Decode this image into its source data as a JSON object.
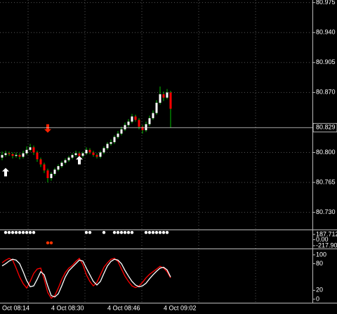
{
  "chart_data": [
    {
      "type": "candlestick",
      "categories": [
        "Oct 08:14",
        null,
        null,
        null,
        null,
        null,
        null,
        null,
        null,
        null,
        null,
        null,
        null,
        null,
        "4 Oct 08:30",
        null,
        null,
        null,
        null,
        null,
        null,
        null,
        null,
        null,
        null,
        null,
        null,
        null,
        null,
        null,
        "4 Oct 08:46",
        null,
        null,
        null,
        null,
        null,
        null,
        null,
        null,
        null,
        null,
        null,
        null,
        null,
        null,
        null,
        "4 Oct 09:02",
        null,
        null
      ],
      "open": [
        80.794,
        80.797,
        80.799,
        80.798,
        80.796,
        80.797,
        80.795,
        80.799,
        80.803,
        80.806,
        80.8,
        80.792,
        80.786,
        80.779,
        80.77,
        80.775,
        80.78,
        80.784,
        80.788,
        80.791,
        80.794,
        80.797,
        80.799,
        80.796,
        80.799,
        80.803,
        80.8,
        80.797,
        80.795,
        80.8,
        80.805,
        80.81,
        80.812,
        80.818,
        80.822,
        80.827,
        80.832,
        80.836,
        80.842,
        80.838,
        80.83,
        80.826,
        80.833,
        80.84,
        80.846,
        80.858,
        80.868,
        80.864,
        80.87
      ],
      "high": [
        80.801,
        80.802,
        80.801,
        80.8,
        80.8,
        80.799,
        80.802,
        80.807,
        80.81,
        80.808,
        80.802,
        80.794,
        80.788,
        80.781,
        80.777,
        80.782,
        80.786,
        80.79,
        80.793,
        80.796,
        80.799,
        80.802,
        80.801,
        80.801,
        80.806,
        80.805,
        80.802,
        80.799,
        80.802,
        80.807,
        80.812,
        80.815,
        80.82,
        80.825,
        80.83,
        80.835,
        80.839,
        80.845,
        80.844,
        80.84,
        80.832,
        80.836,
        80.843,
        80.849,
        80.861,
        80.877,
        80.871,
        80.874,
        80.872
      ],
      "low": [
        80.791,
        80.795,
        80.796,
        80.793,
        80.794,
        80.792,
        80.793,
        80.797,
        80.801,
        80.797,
        80.789,
        80.783,
        80.776,
        80.765,
        80.767,
        80.773,
        80.778,
        80.782,
        80.786,
        80.789,
        80.792,
        80.795,
        80.793,
        80.794,
        80.797,
        80.798,
        80.795,
        80.793,
        80.793,
        80.798,
        80.803,
        80.808,
        80.81,
        80.816,
        80.82,
        80.825,
        80.83,
        80.834,
        80.836,
        80.827,
        80.822,
        80.824,
        80.831,
        80.838,
        80.844,
        80.856,
        80.86,
        80.862,
        80.829
      ],
      "close": [
        80.797,
        80.799,
        80.798,
        80.796,
        80.797,
        80.795,
        80.799,
        80.803,
        80.806,
        80.8,
        80.792,
        80.786,
        80.779,
        80.77,
        80.775,
        80.78,
        80.784,
        80.788,
        80.791,
        80.794,
        80.797,
        80.799,
        80.796,
        80.799,
        80.803,
        80.8,
        80.797,
        80.795,
        80.8,
        80.805,
        80.81,
        80.812,
        80.818,
        80.822,
        80.827,
        80.832,
        80.836,
        80.842,
        80.838,
        80.83,
        80.826,
        80.833,
        80.84,
        80.846,
        80.858,
        80.868,
        80.864,
        80.87,
        80.851
      ],
      "up_color": "#ffffff",
      "down_color": "#ff0000",
      "wick_color": "#00c000",
      "ylim": [
        80.71,
        80.978
      ],
      "yticks": [
        {
          "value": 80.73,
          "label": "80.730"
        },
        80.765,
        {
          "value": 80.8,
          "label": "80.800"
        },
        {
          "value": 80.87,
          "label": "80.870"
        },
        80.905,
        {
          "value": 80.94,
          "label": "80.940"
        },
        80.975
      ],
      "current_price": 80.829,
      "grid": true,
      "up_arrows": {
        "x": [
          1,
          22
        ],
        "values": [
          80.777,
          80.791
        ],
        "color": "#ffffff"
      },
      "down_arrows": {
        "x": [
          13
        ],
        "values": [
          80.828
        ],
        "color": "#ff2200"
      }
    },
    {
      "type": "dots",
      "ylim": [
        -320,
        340
      ],
      "yticks": [
        187.712,
        {
          "value": 0,
          "label": "0.00"
        },
        {
          "value": -217.9,
          "label": "-217.90"
        }
      ],
      "series": [
        {
          "color": "#ffffff",
          "x": [
            1,
            2,
            3,
            4,
            5,
            6,
            7,
            8,
            9,
            24,
            25,
            29,
            32,
            33,
            34,
            35,
            36,
            37,
            41,
            42,
            43,
            44,
            45,
            46,
            47
          ],
          "values": [
            260,
            260,
            260,
            260,
            260,
            260,
            260,
            260,
            260,
            260,
            260,
            260,
            260,
            260,
            260,
            260,
            260,
            260,
            260,
            260,
            260,
            260,
            260,
            260,
            260
          ]
        },
        {
          "color": "#ff3300",
          "x": [
            13,
            14
          ],
          "values": [
            -115,
            -115
          ]
        }
      ]
    },
    {
      "type": "line",
      "ylim": [
        -8,
        111
      ],
      "yticks": [
        0,
        20,
        80,
        100
      ],
      "series": [
        {
          "color": "#ff0000",
          "values": [
            82,
            88,
            92,
            88,
            70,
            50,
            35,
            25,
            40,
            58,
            68,
            70,
            45,
            15,
            2,
            8,
            25,
            45,
            60,
            70,
            76,
            85,
            92,
            78,
            55,
            40,
            30,
            38,
            55,
            72,
            82,
            90,
            92,
            85,
            68,
            52,
            40,
            30,
            26,
            30,
            38,
            48,
            56,
            62,
            68,
            74,
            70,
            62,
            48
          ]
        },
        {
          "color": "#ffffff",
          "values": [
            75,
            80,
            86,
            90,
            88,
            80,
            62,
            42,
            28,
            30,
            45,
            62,
            55,
            30,
            8,
            5,
            12,
            30,
            50,
            64,
            72,
            80,
            88,
            86,
            70,
            55,
            40,
            32,
            40,
            58,
            75,
            85,
            90,
            88,
            80,
            65,
            52,
            40,
            32,
            28,
            30,
            36,
            46,
            55,
            63,
            70,
            72,
            66,
            50
          ]
        }
      ]
    }
  ]
}
